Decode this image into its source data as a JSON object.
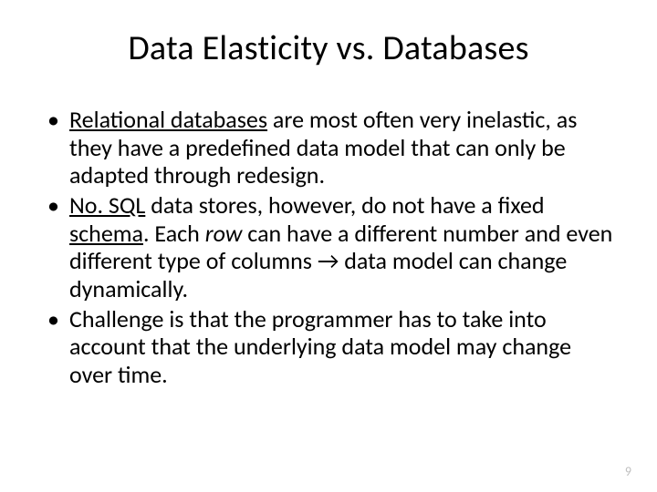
{
  "slide": {
    "title": "Data Elasticity vs. Databases",
    "title_fontsize": 38,
    "title_color": "#000000",
    "body_fontsize": 26,
    "body_color": "#000000",
    "background_color": "#ffffff",
    "page_number": "9",
    "page_number_color": "#bfbfbf",
    "bullets": [
      {
        "segments": [
          {
            "text": "Relational databases",
            "underline": true
          },
          {
            "text": " are most often very inelastic, as they have a predefined data model that can only be adapted through redesign."
          }
        ]
      },
      {
        "segments": [
          {
            "text": "No. SQL",
            "underline": true
          },
          {
            "text": " data stores, however, do not have a fixed "
          },
          {
            "text": "schema",
            "underline": true
          },
          {
            "text": ". Each "
          },
          {
            "text": "row",
            "italic": true
          },
          {
            "text": " can have a different number and even different type of columns → data model can change dynamically."
          }
        ]
      },
      {
        "segments": [
          {
            "text": "Challenge is that the programmer has to take into account that the underlying data model may change over time."
          }
        ]
      }
    ]
  }
}
